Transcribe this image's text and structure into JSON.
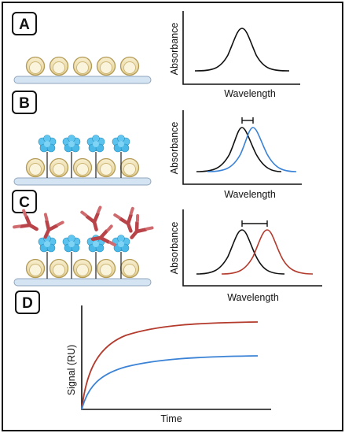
{
  "figure": {
    "panels": [
      {
        "letter": "A",
        "xlabel": "Wavelength",
        "ylabel": "Absorbance"
      },
      {
        "letter": "B",
        "xlabel": "Wavelength",
        "ylabel": "Absorbance"
      },
      {
        "letter": "C",
        "xlabel": "Wavelength",
        "ylabel": "Absorbance"
      },
      {
        "letter": "D",
        "xlabel": "Time",
        "ylabel": "Signal (RU)"
      }
    ],
    "colors": {
      "bead_fill": "#eedfb0",
      "bead_stroke": "#b39a55",
      "substrate": "#d5e4f2",
      "protein": "#47b7e6",
      "antibody": "#b8444a",
      "curve_black": "#111111",
      "curve_blue": "#3a82d6",
      "curve_red": "#b33a2c"
    }
  },
  "chart_data": [
    {
      "type": "line",
      "x": [
        0,
        1,
        2,
        3,
        4,
        5,
        6,
        7,
        8,
        9,
        10
      ],
      "series": [
        {
          "values": [
            0.05,
            0.1,
            0.25,
            0.55,
            0.9,
            1.0,
            0.9,
            0.55,
            0.25,
            0.1,
            0.05
          ]
        }
      ],
      "xlabel": "Wavelength",
      "ylabel": "Absorbance"
    },
    {
      "type": "line",
      "x": [
        0,
        1,
        2,
        3,
        4,
        5,
        6,
        7,
        8,
        9,
        10
      ],
      "series": [
        {
          "values": [
            0.05,
            0.12,
            0.3,
            0.65,
            0.95,
            0.9,
            0.6,
            0.3,
            0.12,
            0.05,
            0.02
          ]
        },
        {
          "values": [
            0.02,
            0.05,
            0.12,
            0.3,
            0.62,
            0.9,
            0.95,
            0.62,
            0.3,
            0.12,
            0.05
          ]
        }
      ],
      "xlabel": "Wavelength",
      "ylabel": "Absorbance",
      "annotations": [
        "peak shift bar"
      ]
    },
    {
      "type": "line",
      "x": [
        0,
        1,
        2,
        3,
        4,
        5,
        6,
        7,
        8,
        9,
        10
      ],
      "series": [
        {
          "values": [
            0.05,
            0.15,
            0.45,
            0.85,
            0.95,
            0.55,
            0.2,
            0.06,
            0.02,
            0.01,
            0.0
          ]
        },
        {
          "values": [
            0.0,
            0.01,
            0.02,
            0.06,
            0.2,
            0.55,
            0.95,
            0.85,
            0.45,
            0.15,
            0.05
          ]
        }
      ],
      "xlabel": "Wavelength",
      "ylabel": "Absorbance",
      "annotations": [
        "peak shift bar"
      ]
    },
    {
      "type": "line",
      "x": [
        0,
        1,
        2,
        3,
        4,
        5,
        6,
        7,
        8,
        9,
        10
      ],
      "series": [
        {
          "values": [
            0,
            0.62,
            0.78,
            0.86,
            0.91,
            0.94,
            0.96,
            0.97,
            0.98,
            0.985,
            0.99
          ]
        },
        {
          "values": [
            0,
            0.28,
            0.38,
            0.44,
            0.48,
            0.51,
            0.53,
            0.54,
            0.55,
            0.555,
            0.56
          ]
        }
      ],
      "xlabel": "Time",
      "ylabel": "Signal (RU)"
    }
  ]
}
